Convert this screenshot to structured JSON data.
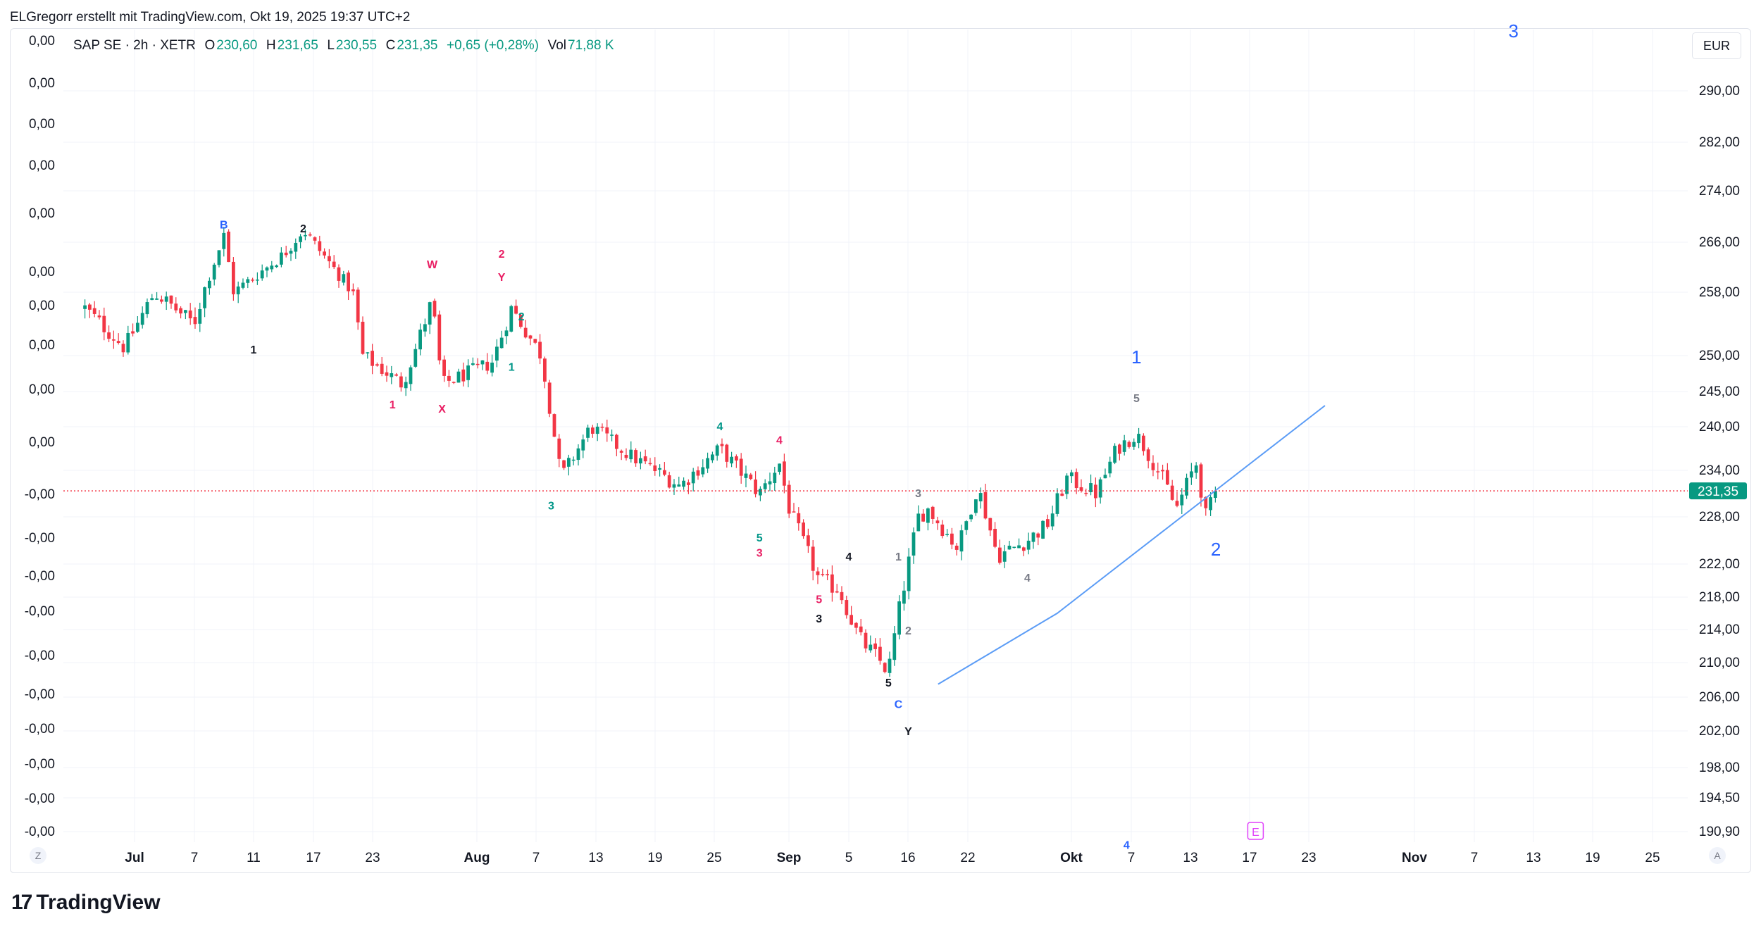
{
  "author_line": "ELGregorr erstellt mit TradingView.com, Okt 19, 2025 19:37 UTC+2",
  "legend": {
    "symbol": "SAP SE · 2h · XETR",
    "o_label": "O",
    "o_value": "230,60",
    "h_label": "H",
    "h_value": "231,65",
    "l_label": "L",
    "l_value": "230,55",
    "c_label": "C",
    "c_value": "231,35",
    "change": "+0,65 (+0,28%)",
    "vol_label": "Vol",
    "vol_value": "71,88 K"
  },
  "currency": "EUR",
  "scale_buttons": {
    "left": "Z",
    "right": "A"
  },
  "branding": "TradingView",
  "colors": {
    "up": "#089981",
    "down": "#f23645",
    "trendline": "#5b9cf6",
    "price_line": "#f23645",
    "blue": "#2962ff",
    "pink": "#e91e63",
    "magenta": "#e040fb",
    "teal": "#009688",
    "gray": "#787b86"
  },
  "chart_data": {
    "type": "candlestick",
    "title": "SAP SE · 2h · XETR",
    "last_price": "231,35",
    "y_axis": {
      "label": "EUR",
      "ticks": [
        "290,00",
        "282,00",
        "274,00",
        "266,00",
        "258,00",
        "250,00",
        "245,00",
        "240,00",
        "234,00",
        "228,00",
        "222,00",
        "218,00",
        "214,00",
        "210,00",
        "206,00",
        "202,00",
        "198,00",
        "194,50",
        "190,90"
      ]
    },
    "left_axis_ticks": [
      "0,00",
      "0,00",
      "0,00",
      "0,00",
      "0,00",
      "0,00",
      "0,00",
      "0,00",
      "0,00",
      "0,00",
      "-0,00",
      "-0,00",
      "-0,00",
      "-0,00",
      "-0,00",
      "-0,00",
      "-0,00",
      "-0,00",
      "-0,00",
      "-0,00"
    ],
    "x_axis": {
      "ticks": [
        "Jul",
        "7",
        "11",
        "17",
        "23",
        "Aug",
        "7",
        "13",
        "19",
        "25",
        "Sep",
        "5",
        "16",
        "22",
        "Okt",
        "7",
        "13",
        "17",
        "23",
        "Nov",
        "7",
        "13",
        "19",
        "25"
      ]
    },
    "price_path": [
      {
        "date": "2025-06-26",
        "close": 256
      },
      {
        "date": "2025-06-30",
        "close": 251
      },
      {
        "date": "2025-07-03",
        "close": 258
      },
      {
        "date": "2025-07-07",
        "close": 254
      },
      {
        "date": "2025-07-10",
        "close": 267
      },
      {
        "date": "2025-07-11",
        "close": 258
      },
      {
        "date": "2025-07-16",
        "close": 264
      },
      {
        "date": "2025-07-18",
        "close": 268
      },
      {
        "date": "2025-07-23",
        "close": 258
      },
      {
        "date": "2025-07-24",
        "close": 250
      },
      {
        "date": "2025-07-28",
        "close": 246
      },
      {
        "date": "2025-07-31",
        "close": 257
      },
      {
        "date": "2025-08-01",
        "close": 246
      },
      {
        "date": "2025-08-06",
        "close": 249
      },
      {
        "date": "2025-08-08",
        "close": 256
      },
      {
        "date": "2025-08-11",
        "close": 250
      },
      {
        "date": "2025-08-13",
        "close": 233
      },
      {
        "date": "2025-08-16",
        "close": 240
      },
      {
        "date": "2025-08-20",
        "close": 236
      },
      {
        "date": "2025-08-25",
        "close": 232
      },
      {
        "date": "2025-08-29",
        "close": 237
      },
      {
        "date": "2025-09-02",
        "close": 231
      },
      {
        "date": "2025-09-04",
        "close": 235
      },
      {
        "date": "2025-09-05",
        "close": 229
      },
      {
        "date": "2025-09-08",
        "close": 220
      },
      {
        "date": "2025-09-10",
        "close": 219
      },
      {
        "date": "2025-09-12",
        "close": 213
      },
      {
        "date": "2025-09-15",
        "close": 209
      },
      {
        "date": "2025-09-16",
        "close": 216
      },
      {
        "date": "2025-09-18",
        "close": 228
      },
      {
        "date": "2025-09-19",
        "close": 229
      },
      {
        "date": "2025-09-22",
        "close": 224
      },
      {
        "date": "2025-09-24",
        "close": 232
      },
      {
        "date": "2025-09-26",
        "close": 223
      },
      {
        "date": "2025-09-29",
        "close": 225
      },
      {
        "date": "2025-10-01",
        "close": 227
      },
      {
        "date": "2025-10-03",
        "close": 233
      },
      {
        "date": "2025-10-06",
        "close": 231
      },
      {
        "date": "2025-10-08",
        "close": 237
      },
      {
        "date": "2025-10-10",
        "close": 239
      },
      {
        "date": "2025-10-13",
        "close": 232
      },
      {
        "date": "2025-10-14",
        "close": 229
      },
      {
        "date": "2025-10-16",
        "close": 235
      },
      {
        "date": "2025-10-17",
        "close": 228
      },
      {
        "date": "2025-10-18",
        "close": 231.35
      }
    ],
    "trendline": [
      {
        "date": "2025-09-20",
        "price": 207.5
      },
      {
        "date": "2025-10-02",
        "price": 216
      },
      {
        "date": "2025-10-29",
        "price": 243
      }
    ],
    "wave_labels": [
      {
        "text": "B",
        "date": "2025-07-10",
        "price": 268.8,
        "color": "blue"
      },
      {
        "text": "2",
        "date": "2025-07-18",
        "price": 268.2,
        "color": "dark"
      },
      {
        "text": "1",
        "date": "2025-07-13",
        "price": 250.8,
        "color": "dark"
      },
      {
        "text": "W",
        "date": "2025-07-31",
        "price": 262.5,
        "color": "pink"
      },
      {
        "text": "2",
        "date": "2025-08-07",
        "price": 264.2,
        "color": "pink"
      },
      {
        "text": "Y",
        "date": "2025-08-07",
        "price": 260.5,
        "color": "pink"
      },
      {
        "text": "2",
        "date": "2025-08-09",
        "price": 255,
        "color": "teal"
      },
      {
        "text": "1",
        "date": "2025-08-08",
        "price": 248.5,
        "color": "teal"
      },
      {
        "text": "1",
        "date": "2025-07-27",
        "price": 243.2,
        "color": "pink"
      },
      {
        "text": "X",
        "date": "2025-08-01",
        "price": 242.6,
        "color": "pink"
      },
      {
        "text": "4",
        "date": "2025-08-29",
        "price": 240.1,
        "color": "teal"
      },
      {
        "text": "4",
        "date": "2025-09-04",
        "price": 238.2,
        "color": "pink"
      },
      {
        "text": "3",
        "date": "2025-08-12",
        "price": 229.5,
        "color": "teal"
      },
      {
        "text": "5",
        "date": "2025-09-02",
        "price": 225.4,
        "color": "teal"
      },
      {
        "text": "3",
        "date": "2025-09-02",
        "price": 223.5,
        "color": "pink"
      },
      {
        "text": "4",
        "date": "2025-09-11",
        "price": 223,
        "color": "dark"
      },
      {
        "text": "5",
        "date": "2025-09-08",
        "price": 217.8,
        "color": "pink"
      },
      {
        "text": "3",
        "date": "2025-09-08",
        "price": 215.4,
        "color": "dark"
      },
      {
        "text": "5",
        "date": "2025-09-15",
        "price": 207.7,
        "color": "dark"
      },
      {
        "text": "C",
        "date": "2025-09-16",
        "price": 205.2,
        "color": "blue"
      },
      {
        "text": "Y",
        "date": "2025-09-17",
        "price": 202,
        "color": "dark"
      },
      {
        "text": "1",
        "date": "2025-09-16",
        "price": 223,
        "color": "gray"
      },
      {
        "text": "2",
        "date": "2025-09-17",
        "price": 213.9,
        "color": "gray"
      },
      {
        "text": "3",
        "date": "2025-09-18",
        "price": 231.1,
        "color": "gray"
      },
      {
        "text": "4",
        "date": "2025-09-29",
        "price": 220.4,
        "color": "gray"
      },
      {
        "text": "5",
        "date": "2025-10-10",
        "price": 244.1,
        "color": "gray"
      },
      {
        "text": "1",
        "date": "2025-10-10",
        "price": 249.8,
        "color": "blue",
        "large": true
      },
      {
        "text": "2",
        "date": "2025-10-18",
        "price": 223.9,
        "color": "blue",
        "large": true
      },
      {
        "text": "3",
        "date": "2025-11-17",
        "price": 299.3,
        "color": "blue",
        "large": true
      },
      {
        "text": "4",
        "date": "2025-10-09",
        "price": 189.5,
        "color": "blue",
        "small": true
      },
      {
        "text": "E",
        "date": "2025-10-22",
        "price": 190.9,
        "color": "magenta",
        "boxed": true
      }
    ]
  }
}
